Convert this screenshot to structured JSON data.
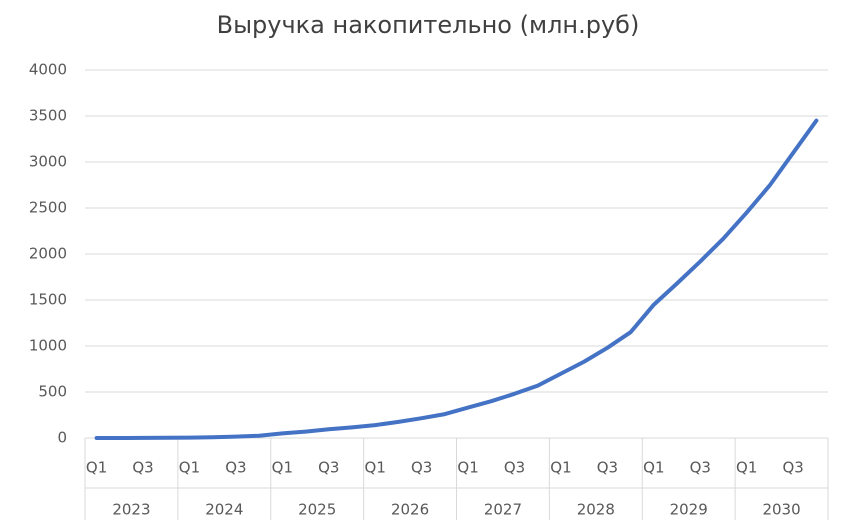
{
  "chart_data": {
    "type": "line",
    "title": "Выручка накопительно (млн.руб)",
    "categories": [
      "Q1",
      null,
      "Q3",
      null,
      "Q1",
      null,
      "Q3",
      null,
      "Q1",
      null,
      "Q3",
      null,
      "Q1",
      null,
      "Q3",
      null,
      "Q1",
      null,
      "Q3",
      null,
      "Q1",
      null,
      "Q3",
      null,
      "Q1",
      null,
      "Q3",
      null,
      "Q1",
      null,
      "Q3",
      null
    ],
    "groups": [
      "2023",
      "2024",
      "2025",
      "2026",
      "2027",
      "2028",
      "2029",
      "2030"
    ],
    "values": [
      0,
      0,
      1,
      2,
      4,
      8,
      15,
      25,
      50,
      70,
      95,
      115,
      140,
      175,
      215,
      260,
      330,
      400,
      480,
      570,
      700,
      830,
      980,
      1150,
      1450,
      1680,
      1920,
      2170,
      2450,
      2750,
      3100,
      3450
    ],
    "color": "#4472c4",
    "ylim": [
      0,
      4000
    ],
    "yticks": [
      0,
      500,
      1000,
      1500,
      2000,
      2500,
      3000,
      3500,
      4000
    ],
    "grid": true
  }
}
